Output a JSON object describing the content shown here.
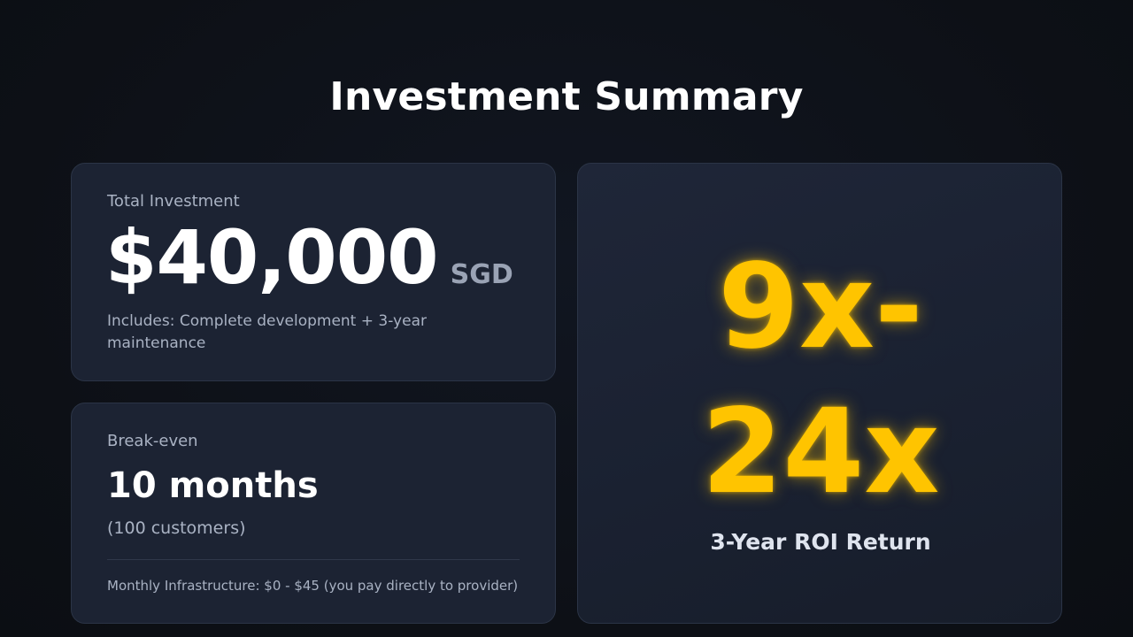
{
  "slide": {
    "title": "Investment Summary"
  },
  "investment": {
    "label": "Total Investment",
    "amount": "$40,000",
    "currency": "SGD",
    "includes": "Includes: Complete development + 3-year maintenance"
  },
  "breakeven": {
    "label": "Break-even",
    "value": "10 months",
    "customers": "(100 customers)",
    "infrastructure": "Monthly Infrastructure: $0 - $45 (you pay directly to provider)"
  },
  "roi": {
    "value_line1": "9x-",
    "value_line2": "24x",
    "caption": "3-Year ROI Return"
  },
  "colors": {
    "background": "#0e1117",
    "card": "#1c2333",
    "accent": "#ffc400",
    "muted_text": "#a9b2c3"
  }
}
